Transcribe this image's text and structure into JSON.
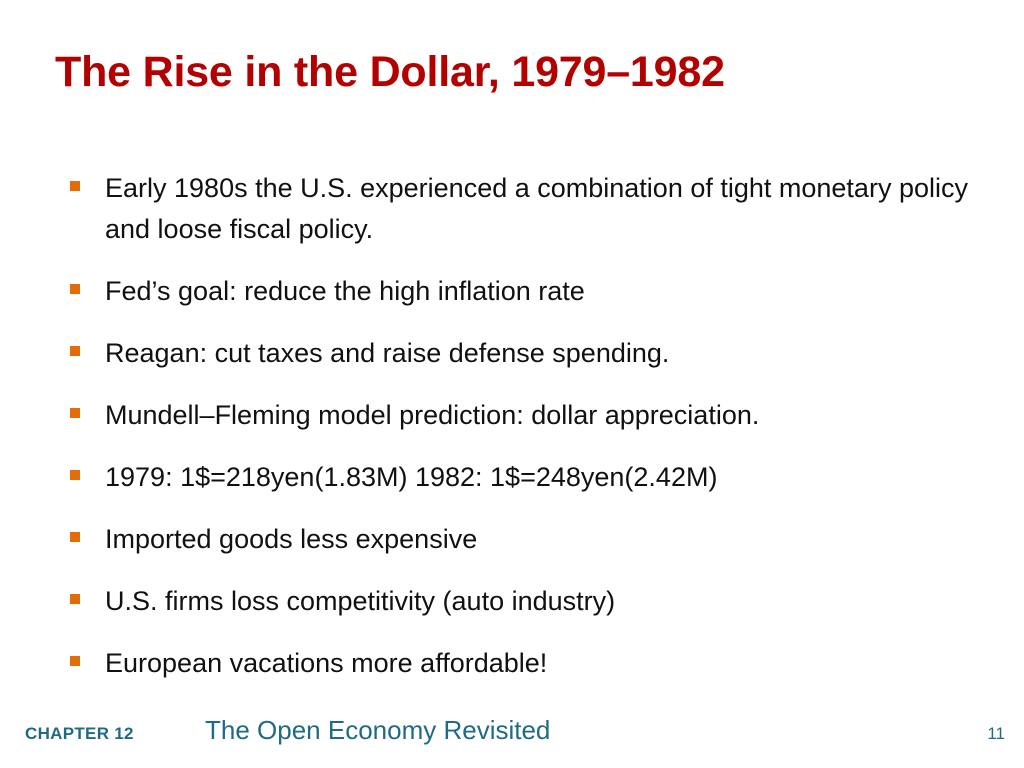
{
  "slide": {
    "title": "The Rise in the Dollar, 1979–1982",
    "bullets": [
      "Early 1980s the U.S. experienced a combination of tight monetary policy and loose fiscal policy.",
      "Fed’s goal: reduce the high inflation rate",
      "Reagan: cut taxes and raise defense spending.",
      "Mundell–Fleming model prediction: dollar appreciation.",
      "1979: 1$=218yen(1.83M) 1982: 1$=248yen(2.42M)",
      "Imported goods less expensive",
      "U.S. firms loss competitivity (auto industry)",
      "European vacations more affordable!"
    ]
  },
  "footer": {
    "chapter_label": "CHAPTER 12",
    "chapter_title": "The Open Economy Revisited",
    "page_number": "11"
  },
  "colors": {
    "title": "#b30000",
    "bullet_marker": "#e36c09",
    "footer_text": "#1f6b85",
    "body_text": "#111111"
  }
}
